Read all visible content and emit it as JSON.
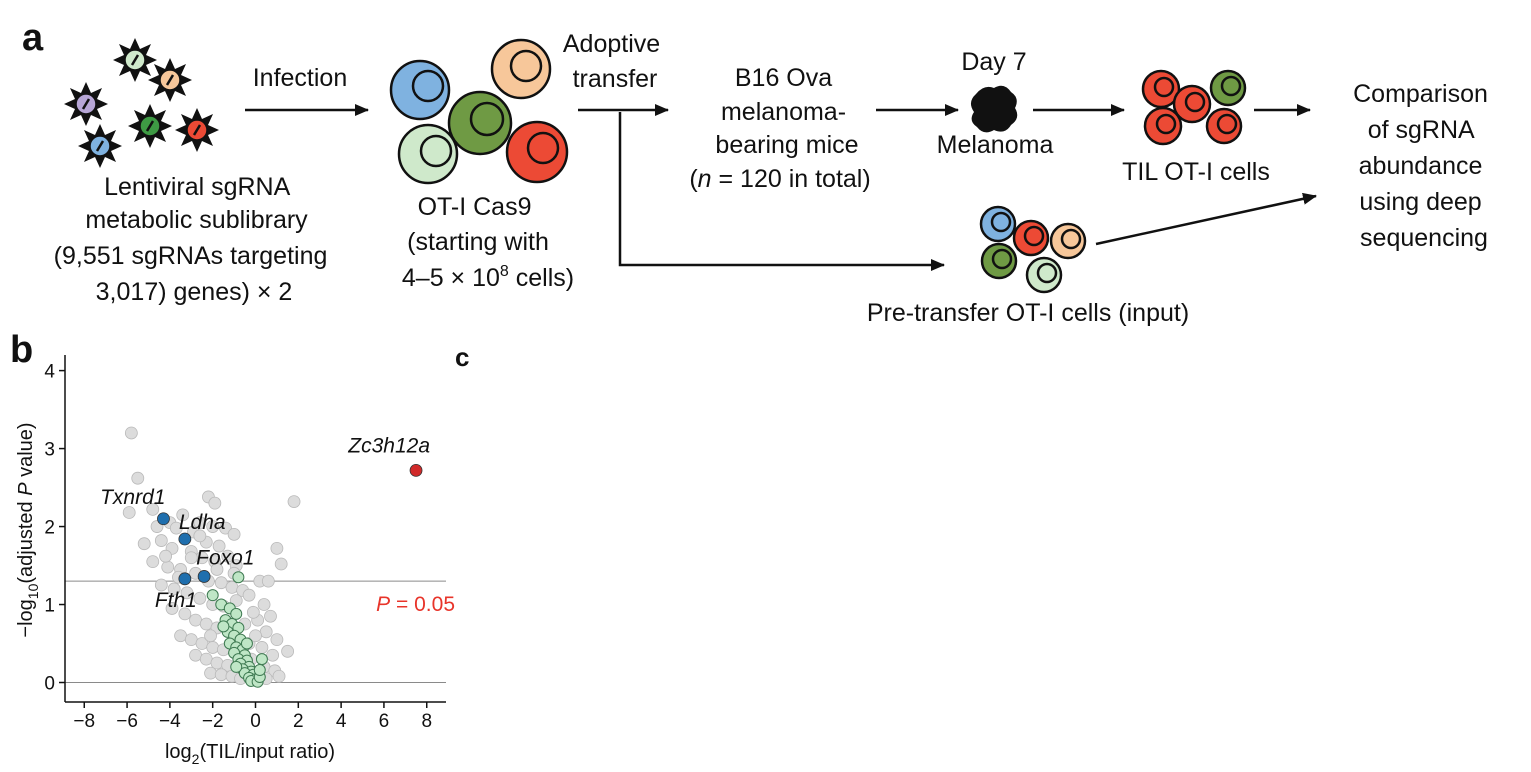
{
  "panels": {
    "a": "a",
    "b": "b",
    "c_fragment": "c"
  },
  "schematic": {
    "library_lines": [
      "Lentiviral sgRNA",
      "metabolic sublibrary",
      "(9,551 sgRNAs targeting",
      "3,017) genes) × 2"
    ],
    "infection": "Infection",
    "cells_lines": [
      "OT-I Cas9",
      "(starting with"
    ],
    "cells_count": {
      "prefix": "4–5 × 10",
      "exp": "8",
      "suffix": " cells)"
    },
    "transfer_lines": [
      "Adoptive",
      "transfer"
    ],
    "mice_lines": [
      "B16 Ova",
      "melanoma-",
      "bearing mice"
    ],
    "mice_n": {
      "n": "n",
      "rest": " = 120 in total)"
    },
    "day": "Day 7",
    "melanoma": "Melanoma",
    "til": "TIL OT-I cells",
    "pretransfer": "Pre-transfer OT-I cells (input)",
    "comparison_lines": [
      "Comparison",
      "of sgRNA",
      "abundance",
      "using deep",
      "sequencing"
    ],
    "colors": {
      "blue": "#7fb2e0",
      "orange": "#f7c79a",
      "green": "#6f9a44",
      "red": "#ec4a35",
      "lightgreen": "#cfe9cb",
      "purple": "#b7a6d6"
    }
  },
  "chart_data": {
    "type": "scatter",
    "xlabel_base": "log",
    "xlabel_sub": "2",
    "xlabel_rest": "(TIL/input ratio)",
    "ylabel_pre": "−log",
    "ylabel_sub": "10",
    "ylabel_mid": "(adjusted ",
    "ylabel_p": "P",
    "ylabel_end": " value)",
    "xlim": [
      -8.9,
      8.9
    ],
    "ylim": [
      -0.25,
      4.2
    ],
    "xticks": [
      -8,
      -6,
      -4,
      -2,
      0,
      2,
      4,
      6,
      8
    ],
    "yticks": [
      0,
      1,
      2,
      3,
      4
    ],
    "hlines": [
      0,
      1.3
    ],
    "threshold": {
      "label_p": "P",
      "label_rest": " = 0.05",
      "y": 1.3,
      "color": "#e8342a"
    },
    "highlighted": [
      {
        "gene": "Zc3h12a",
        "x": 7.5,
        "y": 2.72,
        "color": "#d12a2a",
        "label_pos": "above-left"
      },
      {
        "gene": "Txnrd1",
        "x": -4.3,
        "y": 2.1,
        "color": "#1f6fae",
        "label_pos": "above-left"
      },
      {
        "gene": "Ldha",
        "x": -3.3,
        "y": 1.84,
        "color": "#1f6fae",
        "label_pos": "above-right"
      },
      {
        "gene": "Foxo1",
        "x": -2.4,
        "y": 1.36,
        "color": "#1f6fae",
        "label_pos": "above-right"
      },
      {
        "gene": "Fth1",
        "x": -3.3,
        "y": 1.33,
        "color": "#1f6fae",
        "label_pos": "below-left"
      }
    ],
    "green_points": [
      [
        -0.8,
        1.35
      ],
      [
        -2.0,
        1.12
      ],
      [
        -1.6,
        1.0
      ],
      [
        -1.2,
        0.95
      ],
      [
        -0.9,
        0.88
      ],
      [
        -1.4,
        0.8
      ],
      [
        -1.1,
        0.75
      ],
      [
        -0.8,
        0.7
      ],
      [
        -1.3,
        0.65
      ],
      [
        -1.0,
        0.6
      ],
      [
        -0.7,
        0.55
      ],
      [
        -1.2,
        0.5
      ],
      [
        -0.9,
        0.45
      ],
      [
        -0.6,
        0.42
      ],
      [
        -1.0,
        0.38
      ],
      [
        -0.5,
        0.35
      ],
      [
        -0.8,
        0.3
      ],
      [
        -0.4,
        0.28
      ],
      [
        -0.7,
        0.24
      ],
      [
        -0.3,
        0.2
      ],
      [
        -0.6,
        0.17
      ],
      [
        -0.2,
        0.14
      ],
      [
        -0.5,
        0.12
      ],
      [
        -0.1,
        0.1
      ],
      [
        -0.3,
        0.06
      ],
      [
        0.0,
        0.04
      ],
      [
        -0.2,
        0.02
      ],
      [
        0.1,
        0.01
      ],
      [
        0.2,
        0.07
      ],
      [
        0.2,
        0.16
      ],
      [
        -0.9,
        0.2
      ],
      [
        -0.4,
        0.5
      ],
      [
        -1.5,
        0.72
      ],
      [
        0.3,
        0.3
      ]
    ],
    "grey_points": [
      [
        -5.8,
        3.2
      ],
      [
        -5.5,
        2.62
      ],
      [
        1.8,
        2.32
      ],
      [
        -2.2,
        2.38
      ],
      [
        -1.9,
        2.3
      ],
      [
        -5.9,
        2.18
      ],
      [
        -4.8,
        2.22
      ],
      [
        -4.0,
        2.05
      ],
      [
        -2.6,
        2.05
      ],
      [
        -2.0,
        2.0
      ],
      [
        -1.4,
        1.98
      ],
      [
        -1.0,
        1.9
      ],
      [
        -3.7,
        1.98
      ],
      [
        -2.9,
        1.93
      ],
      [
        -2.3,
        1.8
      ],
      [
        -1.7,
        1.75
      ],
      [
        -5.2,
        1.78
      ],
      [
        -4.4,
        1.82
      ],
      [
        -3.9,
        1.72
      ],
      [
        -3.0,
        1.68
      ],
      [
        -2.5,
        1.6
      ],
      [
        -1.9,
        1.55
      ],
      [
        -1.3,
        1.62
      ],
      [
        -0.9,
        1.5
      ],
      [
        1.0,
        1.72
      ],
      [
        1.2,
        1.52
      ],
      [
        -4.8,
        1.55
      ],
      [
        -4.1,
        1.48
      ],
      [
        -3.5,
        1.45
      ],
      [
        -2.8,
        1.4
      ],
      [
        -2.2,
        1.3
      ],
      [
        -1.6,
        1.28
      ],
      [
        -1.1,
        1.22
      ],
      [
        -0.6,
        1.18
      ],
      [
        -4.4,
        1.25
      ],
      [
        -3.8,
        1.2
      ],
      [
        -3.2,
        1.15
      ],
      [
        -2.6,
        1.08
      ],
      [
        -2.0,
        1.0
      ],
      [
        -1.5,
        0.98
      ],
      [
        -0.9,
        1.05
      ],
      [
        -0.3,
        1.12
      ],
      [
        0.4,
        1.0
      ],
      [
        0.7,
        0.85
      ],
      [
        -3.9,
        0.95
      ],
      [
        -3.3,
        0.88
      ],
      [
        -2.8,
        0.8
      ],
      [
        -2.3,
        0.75
      ],
      [
        -1.8,
        0.7
      ],
      [
        -1.3,
        0.68
      ],
      [
        -0.5,
        0.75
      ],
      [
        0.1,
        0.8
      ],
      [
        0.5,
        0.65
      ],
      [
        1.0,
        0.55
      ],
      [
        -3.5,
        0.6
      ],
      [
        -3.0,
        0.55
      ],
      [
        -2.5,
        0.5
      ],
      [
        -2.0,
        0.45
      ],
      [
        -1.5,
        0.42
      ],
      [
        -0.3,
        0.5
      ],
      [
        0.3,
        0.45
      ],
      [
        0.8,
        0.35
      ],
      [
        -2.8,
        0.35
      ],
      [
        -2.3,
        0.3
      ],
      [
        -1.8,
        0.25
      ],
      [
        -1.3,
        0.22
      ],
      [
        -0.6,
        0.25
      ],
      [
        0.4,
        0.2
      ],
      [
        0.9,
        0.15
      ],
      [
        -2.1,
        0.12
      ],
      [
        -1.6,
        0.1
      ],
      [
        -1.1,
        0.08
      ],
      [
        -0.7,
        0.05
      ],
      [
        0.5,
        0.05
      ],
      [
        1.1,
        0.08
      ],
      [
        -3.0,
        1.6
      ],
      [
        -2.6,
        1.88
      ],
      [
        -1.8,
        1.45
      ],
      [
        -4.6,
        2.0
      ],
      [
        -3.4,
        2.15
      ],
      [
        0.2,
        1.3
      ],
      [
        -0.1,
        0.9
      ],
      [
        -4.2,
        1.62
      ],
      [
        -3.6,
        1.35
      ],
      [
        -2.1,
        0.6
      ],
      [
        1.5,
        0.4
      ],
      [
        -1.0,
        1.4
      ],
      [
        0.0,
        0.6
      ],
      [
        0.6,
        1.3
      ],
      [
        -0.2,
        0.3
      ]
    ]
  }
}
